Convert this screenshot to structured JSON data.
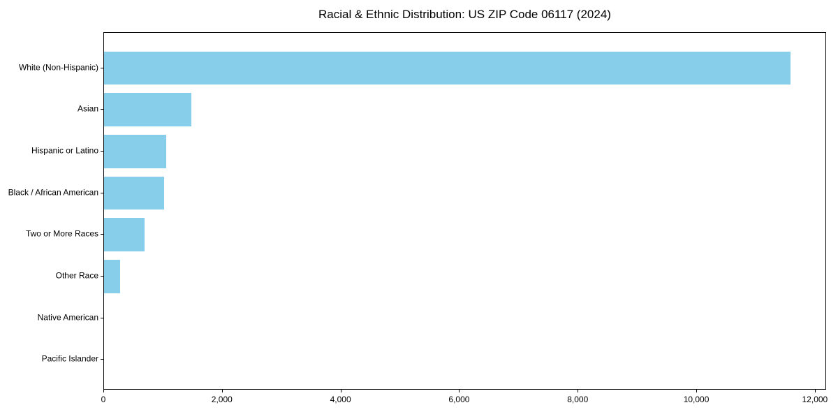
{
  "chart_data": {
    "type": "bar",
    "orientation": "horizontal",
    "title": "Racial & Ethnic Distribution: US ZIP Code 06117 (2024)",
    "categories": [
      "White (Non-Hispanic)",
      "Asian",
      "Hispanic or Latino",
      "Black / African American",
      "Two or More Races",
      "Other Race",
      "Native American",
      "Pacific Islander"
    ],
    "values": [
      11600,
      1480,
      1050,
      1020,
      680,
      270,
      0,
      0
    ],
    "xlabel": "",
    "ylabel": "",
    "xlim": [
      0,
      12190
    ],
    "x_ticks": [
      0,
      2000,
      4000,
      6000,
      8000,
      10000,
      12000
    ],
    "x_tick_labels": [
      "0",
      "2,000",
      "4,000",
      "6,000",
      "8,000",
      "10,000",
      "12,000"
    ],
    "bar_color": "#87CEEB",
    "background_color": "#ffffff",
    "axis_color": "#000000",
    "grid": false,
    "legend": null
  }
}
